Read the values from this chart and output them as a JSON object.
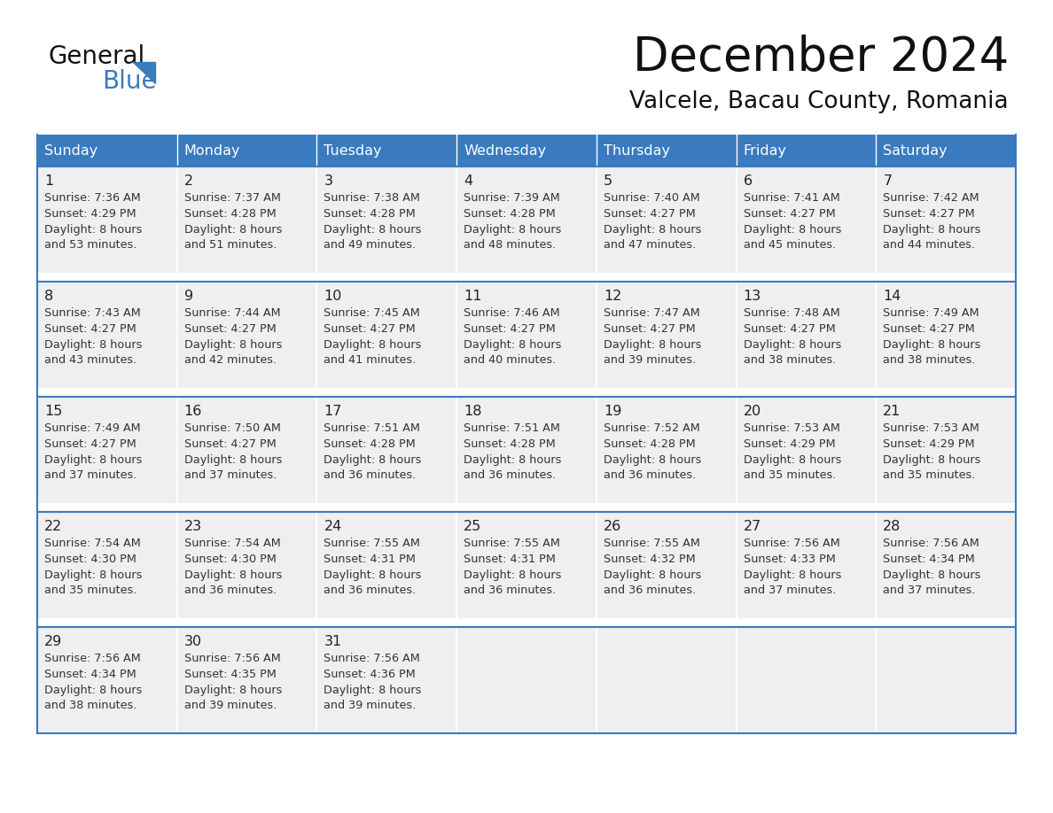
{
  "title": "December 2024",
  "subtitle": "Valcele, Bacau County, Romania",
  "header_bg_color": "#3a7abf",
  "header_text_color": "#ffffff",
  "cell_bg_color": "#efefef",
  "separator_color": "#3a7abf",
  "text_color_dark": "#1a1a1a",
  "text_color_body": "#333333",
  "day_names": [
    "Sunday",
    "Monday",
    "Tuesday",
    "Wednesday",
    "Thursday",
    "Friday",
    "Saturday"
  ],
  "weeks": [
    [
      {
        "day": 1,
        "sunrise": "7:36 AM",
        "sunset": "4:29 PM",
        "daylight": "8 hours and 53 minutes"
      },
      {
        "day": 2,
        "sunrise": "7:37 AM",
        "sunset": "4:28 PM",
        "daylight": "8 hours and 51 minutes"
      },
      {
        "day": 3,
        "sunrise": "7:38 AM",
        "sunset": "4:28 PM",
        "daylight": "8 hours and 49 minutes"
      },
      {
        "day": 4,
        "sunrise": "7:39 AM",
        "sunset": "4:28 PM",
        "daylight": "8 hours and 48 minutes"
      },
      {
        "day": 5,
        "sunrise": "7:40 AM",
        "sunset": "4:27 PM",
        "daylight": "8 hours and 47 minutes"
      },
      {
        "day": 6,
        "sunrise": "7:41 AM",
        "sunset": "4:27 PM",
        "daylight": "8 hours and 45 minutes"
      },
      {
        "day": 7,
        "sunrise": "7:42 AM",
        "sunset": "4:27 PM",
        "daylight": "8 hours and 44 minutes"
      }
    ],
    [
      {
        "day": 8,
        "sunrise": "7:43 AM",
        "sunset": "4:27 PM",
        "daylight": "8 hours and 43 minutes"
      },
      {
        "day": 9,
        "sunrise": "7:44 AM",
        "sunset": "4:27 PM",
        "daylight": "8 hours and 42 minutes"
      },
      {
        "day": 10,
        "sunrise": "7:45 AM",
        "sunset": "4:27 PM",
        "daylight": "8 hours and 41 minutes"
      },
      {
        "day": 11,
        "sunrise": "7:46 AM",
        "sunset": "4:27 PM",
        "daylight": "8 hours and 40 minutes"
      },
      {
        "day": 12,
        "sunrise": "7:47 AM",
        "sunset": "4:27 PM",
        "daylight": "8 hours and 39 minutes"
      },
      {
        "day": 13,
        "sunrise": "7:48 AM",
        "sunset": "4:27 PM",
        "daylight": "8 hours and 38 minutes"
      },
      {
        "day": 14,
        "sunrise": "7:49 AM",
        "sunset": "4:27 PM",
        "daylight": "8 hours and 38 minutes"
      }
    ],
    [
      {
        "day": 15,
        "sunrise": "7:49 AM",
        "sunset": "4:27 PM",
        "daylight": "8 hours and 37 minutes"
      },
      {
        "day": 16,
        "sunrise": "7:50 AM",
        "sunset": "4:27 PM",
        "daylight": "8 hours and 37 minutes"
      },
      {
        "day": 17,
        "sunrise": "7:51 AM",
        "sunset": "4:28 PM",
        "daylight": "8 hours and 36 minutes"
      },
      {
        "day": 18,
        "sunrise": "7:51 AM",
        "sunset": "4:28 PM",
        "daylight": "8 hours and 36 minutes"
      },
      {
        "day": 19,
        "sunrise": "7:52 AM",
        "sunset": "4:28 PM",
        "daylight": "8 hours and 36 minutes"
      },
      {
        "day": 20,
        "sunrise": "7:53 AM",
        "sunset": "4:29 PM",
        "daylight": "8 hours and 35 minutes"
      },
      {
        "day": 21,
        "sunrise": "7:53 AM",
        "sunset": "4:29 PM",
        "daylight": "8 hours and 35 minutes"
      }
    ],
    [
      {
        "day": 22,
        "sunrise": "7:54 AM",
        "sunset": "4:30 PM",
        "daylight": "8 hours and 35 minutes"
      },
      {
        "day": 23,
        "sunrise": "7:54 AM",
        "sunset": "4:30 PM",
        "daylight": "8 hours and 36 minutes"
      },
      {
        "day": 24,
        "sunrise": "7:55 AM",
        "sunset": "4:31 PM",
        "daylight": "8 hours and 36 minutes"
      },
      {
        "day": 25,
        "sunrise": "7:55 AM",
        "sunset": "4:31 PM",
        "daylight": "8 hours and 36 minutes"
      },
      {
        "day": 26,
        "sunrise": "7:55 AM",
        "sunset": "4:32 PM",
        "daylight": "8 hours and 36 minutes"
      },
      {
        "day": 27,
        "sunrise": "7:56 AM",
        "sunset": "4:33 PM",
        "daylight": "8 hours and 37 minutes"
      },
      {
        "day": 28,
        "sunrise": "7:56 AM",
        "sunset": "4:34 PM",
        "daylight": "8 hours and 37 minutes"
      }
    ],
    [
      {
        "day": 29,
        "sunrise": "7:56 AM",
        "sunset": "4:34 PM",
        "daylight": "8 hours and 38 minutes"
      },
      {
        "day": 30,
        "sunrise": "7:56 AM",
        "sunset": "4:35 PM",
        "daylight": "8 hours and 39 minutes"
      },
      {
        "day": 31,
        "sunrise": "7:56 AM",
        "sunset": "4:36 PM",
        "daylight": "8 hours and 39 minutes"
      },
      null,
      null,
      null,
      null
    ]
  ]
}
